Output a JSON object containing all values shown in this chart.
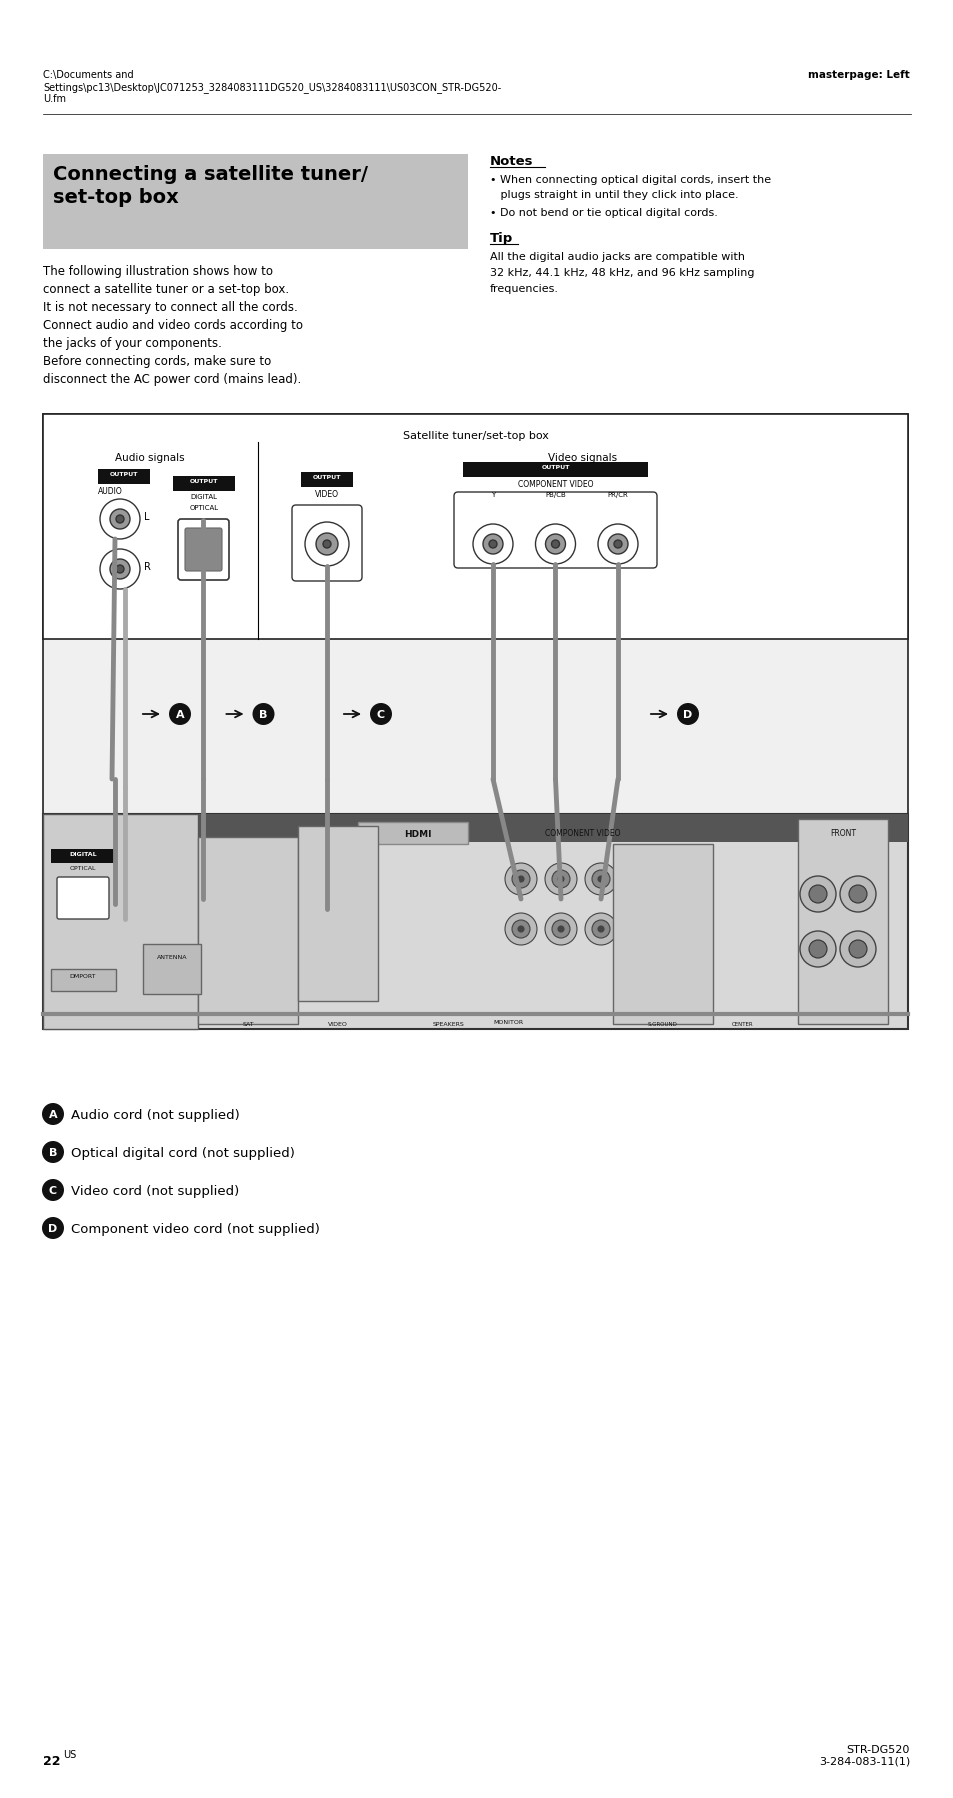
{
  "bg_color": "#ffffff",
  "header_path_text": "C:\\Documents and\nSettings\\pc13\\Desktop\\JC071253_3284083111DG520_US\\3284083111\\US03CON_STR-DG520-\nU.fm",
  "header_right_text": "masterpage: Left",
  "title_box_text": "Connecting a satellite tuner/\nset-top box",
  "title_box_bg": "#c0c0c0",
  "title_box_text_color": "#000000",
  "left_body_lines": [
    "The following illustration shows how to",
    "connect a satellite tuner or a set-top box.",
    "It is not necessary to connect all the cords.",
    "Connect audio and video cords according to",
    "the jacks of your components.",
    "Before connecting cords, make sure to",
    "disconnect the AC power cord (mains lead)."
  ],
  "notes_title": "Notes",
  "note1_line1": "When connecting optical digital cords, insert the",
  "note1_line2": "  plugs straight in until they click into place.",
  "note2": "Do not bend or tie optical digital cords.",
  "tip_title": "Tip",
  "tip_lines": [
    "All the digital audio jacks are compatible with",
    "32 kHz, 44.1 kHz, 48 kHz, and 96 kHz sampling",
    "frequencies."
  ],
  "diagram_title": "Satellite tuner/set-top box",
  "audio_label": "Audio signals",
  "video_label": "Video signals",
  "cord_A": "Audio cord (not supplied)",
  "cord_B": "Optical digital cord (not supplied)",
  "cord_C": "Video cord (not supplied)",
  "cord_D": "Component video cord (not supplied)",
  "page_number": "22",
  "page_us": "US",
  "bottom_right_text": "STR-DG520\n3-284-083-11(1)"
}
